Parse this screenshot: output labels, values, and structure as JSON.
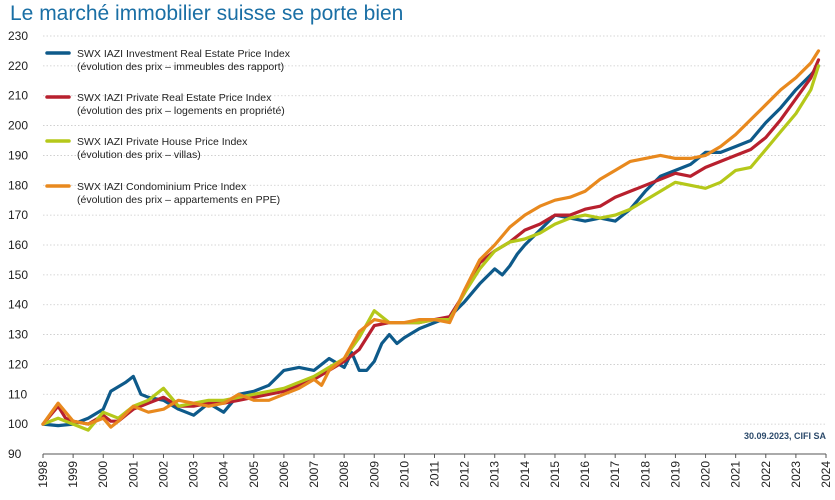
{
  "title": "Le marché immobilier suisse se porte bien",
  "source_note": "30.09.2023, CIFI SA",
  "chart_data": {
    "type": "line",
    "title": "Le marché immobilier suisse se porte bien",
    "xlabel": "",
    "ylabel": "",
    "ylim": [
      90,
      230
    ],
    "xlim": [
      1998,
      2024
    ],
    "y_ticks": [
      90,
      100,
      110,
      120,
      130,
      140,
      150,
      160,
      170,
      180,
      190,
      200,
      210,
      220,
      230
    ],
    "x_ticks": [
      1998,
      1999,
      2000,
      2001,
      2002,
      2003,
      2004,
      2005,
      2006,
      2007,
      2008,
      2009,
      2010,
      2011,
      2012,
      2013,
      2014,
      2015,
      2016,
      2017,
      2018,
      2019,
      2020,
      2021,
      2022,
      2023,
      2024
    ],
    "grid": "horizontal",
    "legend_position": "top-left",
    "series": [
      {
        "name": "SWX IAZI Investment Real Estate Price Index",
        "name_line2": "(évolution des prix – immeubles des rapport)",
        "color": "#0e5a8a",
        "x": [
          1998.0,
          1998.5,
          1999.0,
          1999.5,
          2000.0,
          2000.25,
          2000.75,
          2001.0,
          2001.25,
          2001.5,
          2002.0,
          2002.5,
          2003.0,
          2003.5,
          2004.0,
          2004.5,
          2005.0,
          2005.5,
          2006.0,
          2006.5,
          2007.0,
          2007.5,
          2008.0,
          2008.25,
          2008.5,
          2008.75,
          2009.0,
          2009.25,
          2009.5,
          2009.75,
          2010.0,
          2010.5,
          2011.0,
          2011.5,
          2012.0,
          2012.5,
          2013.0,
          2013.25,
          2013.5,
          2013.75,
          2014.0,
          2014.5,
          2015.0,
          2015.5,
          2016.0,
          2016.5,
          2017.0,
          2017.5,
          2018.0,
          2018.5,
          2019.0,
          2019.5,
          2020.0,
          2020.5,
          2021.0,
          2021.5,
          2022.0,
          2022.5,
          2023.0,
          2023.5,
          2023.75
        ],
        "values": [
          100,
          99.5,
          100,
          102,
          105,
          111,
          114,
          116,
          110,
          109,
          108,
          105,
          103,
          107,
          104,
          110,
          111,
          113,
          118,
          119,
          118,
          122,
          119,
          124,
          118,
          118,
          121,
          127,
          130,
          127,
          129,
          132,
          134,
          136,
          141,
          147,
          152,
          150,
          153,
          157,
          160,
          165,
          170,
          169,
          168,
          169,
          168,
          172,
          178,
          183,
          185,
          187,
          191,
          191,
          193,
          195,
          201,
          206,
          212,
          217,
          220
        ]
      },
      {
        "name": "SWX IAZI Private Real Estate Price Index",
        "name_line2": "(évolution des prix – logements en propriété)",
        "color": "#b8202e",
        "x": [
          1998.0,
          1998.25,
          1998.5,
          1998.75,
          1999.0,
          1999.5,
          2000.0,
          2000.25,
          2000.5,
          2001.0,
          2001.5,
          2002.0,
          2002.5,
          2003.0,
          2003.5,
          2004.0,
          2004.5,
          2005.0,
          2005.5,
          2006.0,
          2006.5,
          2007.0,
          2007.5,
          2008.0,
          2008.5,
          2009.0,
          2009.5,
          2010.0,
          2010.5,
          2011.0,
          2011.5,
          2012.0,
          2012.5,
          2013.0,
          2013.5,
          2014.0,
          2014.5,
          2015.0,
          2015.5,
          2016.0,
          2016.5,
          2017.0,
          2017.5,
          2018.0,
          2018.5,
          2019.0,
          2019.5,
          2020.0,
          2020.5,
          2021.0,
          2021.5,
          2022.0,
          2022.5,
          2023.0,
          2023.5,
          2023.75
        ],
        "values": [
          100,
          103,
          106,
          102,
          101,
          100,
          103,
          101,
          101,
          105,
          107,
          109,
          106,
          106,
          107,
          107,
          108,
          109,
          110,
          111,
          113,
          115,
          118,
          121,
          125,
          133,
          134,
          134,
          134,
          135,
          136,
          144,
          154,
          158,
          161,
          165,
          167,
          170,
          170,
          172,
          173,
          176,
          178,
          180,
          182,
          184,
          183,
          186,
          188,
          190,
          192,
          196,
          202,
          209,
          216,
          222
        ]
      },
      {
        "name": "SWX IAZI Private House Price Index",
        "name_line2": "(évolution des prix – villas)",
        "color": "#b5c81a",
        "x": [
          1998.0,
          1998.5,
          1999.0,
          1999.5,
          2000.0,
          2000.5,
          2001.0,
          2001.5,
          2002.0,
          2002.5,
          2003.0,
          2003.5,
          2004.0,
          2004.5,
          2005.0,
          2005.5,
          2006.0,
          2006.5,
          2007.0,
          2007.5,
          2008.0,
          2008.5,
          2009.0,
          2009.5,
          2010.0,
          2010.5,
          2011.0,
          2011.5,
          2012.0,
          2012.5,
          2013.0,
          2013.5,
          2014.0,
          2014.5,
          2015.0,
          2015.5,
          2016.0,
          2016.5,
          2017.0,
          2017.5,
          2018.0,
          2018.5,
          2019.0,
          2019.5,
          2020.0,
          2020.5,
          2021.0,
          2021.5,
          2022.0,
          2022.5,
          2023.0,
          2023.5,
          2023.75
        ],
        "values": [
          100,
          102,
          100,
          98,
          104,
          102,
          106,
          108,
          112,
          106,
          107,
          108,
          108,
          109,
          110,
          111,
          112,
          114,
          116,
          119,
          122,
          129,
          138,
          134,
          134,
          134,
          135,
          135,
          144,
          152,
          158,
          161,
          162,
          164,
          167,
          169,
          170,
          169,
          170,
          172,
          175,
          178,
          181,
          180,
          179,
          181,
          185,
          186,
          192,
          198,
          204,
          212,
          220
        ]
      },
      {
        "name": "SWX IAZI Condominium Price Index",
        "name_line2": "(évolution des prix – appartements en PPE)",
        "color": "#e8891e",
        "x": [
          1998.0,
          1998.5,
          1999.0,
          1999.5,
          2000.0,
          2000.25,
          2000.5,
          2001.0,
          2001.5,
          2002.0,
          2002.5,
          2003.0,
          2003.5,
          2004.0,
          2004.5,
          2005.0,
          2005.5,
          2006.0,
          2006.5,
          2007.0,
          2007.25,
          2007.5,
          2008.0,
          2008.5,
          2009.0,
          2009.5,
          2010.0,
          2010.5,
          2011.0,
          2011.5,
          2012.0,
          2012.5,
          2013.0,
          2013.5,
          2014.0,
          2014.5,
          2015.0,
          2015.5,
          2016.0,
          2016.5,
          2017.0,
          2017.5,
          2018.0,
          2018.5,
          2019.0,
          2019.5,
          2020.0,
          2020.5,
          2021.0,
          2021.5,
          2022.0,
          2022.5,
          2023.0,
          2023.5,
          2023.75
        ],
        "values": [
          100,
          107,
          101,
          100,
          102,
          99,
          101,
          106,
          104,
          105,
          108,
          107,
          106,
          107,
          110,
          108,
          108,
          110,
          112,
          115,
          113,
          118,
          122,
          131,
          135,
          134,
          134,
          135,
          135,
          134,
          145,
          155,
          160,
          166,
          170,
          173,
          175,
          176,
          178,
          182,
          185,
          188,
          189,
          190,
          189,
          189,
          190,
          193,
          197,
          202,
          207,
          212,
          216,
          221,
          225
        ]
      }
    ]
  }
}
